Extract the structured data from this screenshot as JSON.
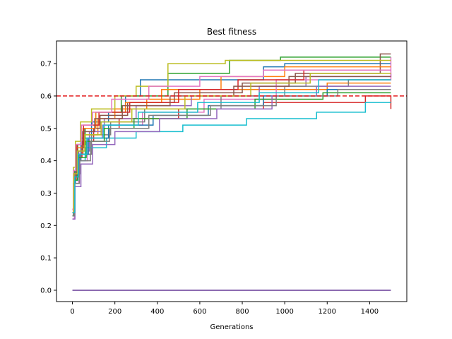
{
  "chart_data": {
    "type": "line",
    "title": "Best fitness",
    "xlabel": "Generations",
    "ylabel": "",
    "xlim": [
      -75,
      1575
    ],
    "ylim": [
      -0.035,
      0.77
    ],
    "xticks": [
      0,
      200,
      400,
      600,
      800,
      1000,
      1200,
      1400
    ],
    "yticks": [
      0.0,
      0.1,
      0.2,
      0.3,
      0.4,
      0.5,
      0.6,
      0.7
    ],
    "xtick_labels": [
      "0",
      "200",
      "400",
      "600",
      "800",
      "1000",
      "1200",
      "1400"
    ],
    "ytick_labels": [
      "0.0",
      "0.1",
      "0.2",
      "0.3",
      "0.4",
      "0.5",
      "0.6",
      "0.7"
    ],
    "grid": false,
    "legend": "none",
    "threshold": {
      "value": 0.6,
      "color": "#e31a1c",
      "style": "dashed"
    },
    "colors": [
      "#1f77b4",
      "#ff7f0e",
      "#2ca02c",
      "#d62728",
      "#9467bd",
      "#8c564b",
      "#e377c2",
      "#7f7f7f",
      "#bcbd22",
      "#17becf"
    ],
    "zero_series": {
      "x": [
        0,
        1500
      ],
      "y": [
        0.0,
        0.0
      ],
      "color": "#8c6bb1"
    },
    "series": [
      {
        "x": [
          0,
          5,
          15,
          40,
          90,
          170,
          250,
          320,
          900,
          1000,
          1500
        ],
        "y": [
          0.23,
          0.33,
          0.4,
          0.47,
          0.52,
          0.55,
          0.6,
          0.65,
          0.69,
          0.7,
          0.7
        ]
      },
      {
        "x": [
          0,
          8,
          20,
          50,
          120,
          200,
          350,
          600,
          1200,
          1500
        ],
        "y": [
          0.24,
          0.35,
          0.42,
          0.48,
          0.53,
          0.56,
          0.59,
          0.62,
          0.64,
          0.64
        ]
      },
      {
        "x": [
          0,
          10,
          25,
          60,
          110,
          230,
          450,
          740,
          980,
          1500
        ],
        "y": [
          0.25,
          0.37,
          0.45,
          0.5,
          0.55,
          0.6,
          0.67,
          0.71,
          0.72,
          0.72
        ]
      },
      {
        "x": [
          0,
          6,
          18,
          45,
          100,
          220,
          500,
          900,
          1380,
          1500
        ],
        "y": [
          0.23,
          0.34,
          0.41,
          0.46,
          0.5,
          0.53,
          0.56,
          0.58,
          0.6,
          0.56
        ]
      },
      {
        "x": [
          0,
          12,
          30,
          80,
          150,
          300,
          560,
          880,
          1100,
          1500
        ],
        "y": [
          0.24,
          0.36,
          0.43,
          0.49,
          0.53,
          0.57,
          0.6,
          0.63,
          0.66,
          0.67
        ]
      },
      {
        "x": [
          0,
          7,
          22,
          55,
          130,
          260,
          480,
          800,
          1050,
          1450,
          1500
        ],
        "y": [
          0.25,
          0.35,
          0.44,
          0.5,
          0.54,
          0.58,
          0.61,
          0.64,
          0.67,
          0.73,
          0.73
        ]
      },
      {
        "x": [
          0,
          9,
          28,
          70,
          140,
          330,
          620,
          960,
          1500
        ],
        "y": [
          0.22,
          0.33,
          0.4,
          0.47,
          0.51,
          0.55,
          0.59,
          0.65,
          0.72
        ]
      },
      {
        "x": [
          0,
          11,
          35,
          90,
          180,
          340,
          700,
          1000,
          1300,
          1500
        ],
        "y": [
          0.24,
          0.36,
          0.42,
          0.48,
          0.52,
          0.56,
          0.6,
          0.63,
          0.65,
          0.65
        ]
      },
      {
        "x": [
          0,
          5,
          14,
          38,
          90,
          200,
          300,
          450,
          720,
          1500
        ],
        "y": [
          0.25,
          0.38,
          0.46,
          0.52,
          0.56,
          0.6,
          0.63,
          0.7,
          0.71,
          0.71
        ]
      },
      {
        "x": [
          0,
          8,
          26,
          60,
          160,
          300,
          520,
          820,
          1150,
          1380,
          1500
        ],
        "y": [
          0.23,
          0.34,
          0.4,
          0.44,
          0.47,
          0.49,
          0.51,
          0.53,
          0.55,
          0.58,
          0.58
        ]
      },
      {
        "x": [
          0,
          10,
          30,
          75,
          170,
          380,
          640,
          900,
          1200,
          1500
        ],
        "y": [
          0.24,
          0.35,
          0.42,
          0.47,
          0.51,
          0.54,
          0.57,
          0.6,
          0.62,
          0.62
        ]
      },
      {
        "x": [
          0,
          6,
          20,
          50,
          110,
          250,
          420,
          700,
          1000,
          1500
        ],
        "y": [
          0.24,
          0.37,
          0.44,
          0.5,
          0.55,
          0.58,
          0.62,
          0.66,
          0.69,
          0.69
        ]
      },
      {
        "x": [
          0,
          9,
          24,
          65,
          150,
          290,
          540,
          860,
          1180,
          1500
        ],
        "y": [
          0.23,
          0.34,
          0.41,
          0.46,
          0.5,
          0.53,
          0.56,
          0.59,
          0.61,
          0.61
        ]
      },
      {
        "x": [
          0,
          7,
          21,
          52,
          125,
          270,
          500,
          780,
          1090,
          1500
        ],
        "y": [
          0.25,
          0.36,
          0.45,
          0.51,
          0.55,
          0.58,
          0.62,
          0.65,
          0.68,
          0.68
        ]
      },
      {
        "x": [
          0,
          12,
          40,
          95,
          200,
          410,
          680,
          940,
          1150,
          1500
        ],
        "y": [
          0.22,
          0.32,
          0.39,
          0.45,
          0.49,
          0.53,
          0.56,
          0.6,
          0.63,
          0.63
        ]
      },
      {
        "x": [
          0,
          8,
          19,
          48,
          105,
          235,
          460,
          760,
          1020,
          1500
        ],
        "y": [
          0.24,
          0.35,
          0.43,
          0.49,
          0.53,
          0.57,
          0.6,
          0.63,
          0.66,
          0.66
        ]
      },
      {
        "x": [
          0,
          6,
          16,
          42,
          95,
          185,
          360,
          600,
          900,
          1500
        ],
        "y": [
          0.25,
          0.37,
          0.45,
          0.51,
          0.55,
          0.59,
          0.63,
          0.66,
          0.68,
          0.68
        ]
      },
      {
        "x": [
          0,
          10,
          33,
          85,
          175,
          360,
          650,
          960,
          1250,
          1500
        ],
        "y": [
          0.23,
          0.33,
          0.4,
          0.46,
          0.5,
          0.54,
          0.57,
          0.6,
          0.62,
          0.62
        ]
      },
      {
        "x": [
          0,
          7,
          23,
          58,
          135,
          280,
          530,
          840,
          1120,
          1500
        ],
        "y": [
          0.24,
          0.36,
          0.43,
          0.48,
          0.52,
          0.56,
          0.6,
          0.64,
          0.67,
          0.67
        ]
      },
      {
        "x": [
          0,
          11,
          27,
          68,
          145,
          310,
          590,
          880,
          1160,
          1500
        ],
        "y": [
          0.24,
          0.35,
          0.42,
          0.47,
          0.51,
          0.55,
          0.58,
          0.61,
          0.65,
          0.65
        ]
      }
    ]
  }
}
